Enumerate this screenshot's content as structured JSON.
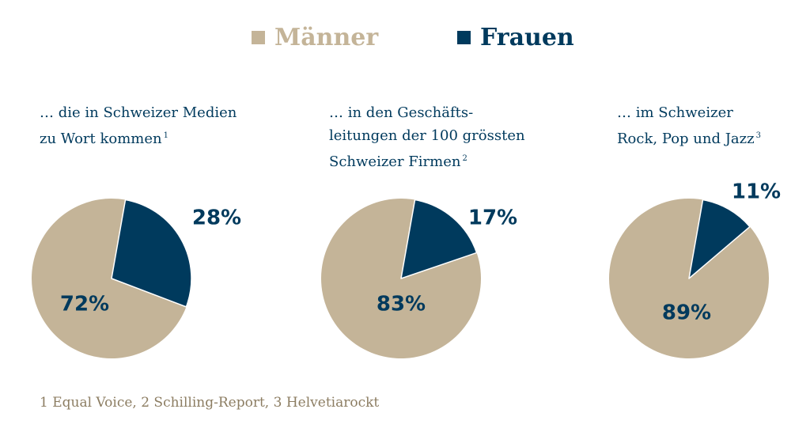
{
  "legend": {
    "men": {
      "label": "Männer",
      "color": "#c4b498"
    },
    "women": {
      "label": "Frauen",
      "color": "#003a5d"
    }
  },
  "panels": [
    {
      "title_lines": [
        "… die in Schweizer Medien",
        "zu Wort kommen"
      ],
      "footnote_ref": "1",
      "men_label": "72%",
      "women_label": "28%"
    },
    {
      "title_lines": [
        "… in den Geschäfts-",
        "leitungen der 100 grössten",
        "Schweizer Firmen"
      ],
      "footnote_ref": "2",
      "men_label": "83%",
      "women_label": "17%"
    },
    {
      "title_lines": [
        "… im Schweizer",
        "Rock, Pop und Jazz"
      ],
      "footnote_ref": "3",
      "men_label": "89%",
      "women_label": "11%"
    }
  ],
  "footnote": "1 Equal Voice, 2 Schilling-Report, 3 Helvetiarockt",
  "chart_data": [
    {
      "type": "pie",
      "title": "… die in Schweizer Medien zu Wort kommen",
      "labels": [
        "Männer",
        "Frauen"
      ],
      "values": [
        72,
        28
      ]
    },
    {
      "type": "pie",
      "title": "… in den Geschäftsleitungen der 100 grössten Schweizer Firmen",
      "labels": [
        "Männer",
        "Frauen"
      ],
      "values": [
        83,
        17
      ]
    },
    {
      "type": "pie",
      "title": "… im Schweizer Rock, Pop und Jazz",
      "labels": [
        "Männer",
        "Frauen"
      ],
      "values": [
        89,
        11
      ]
    }
  ]
}
